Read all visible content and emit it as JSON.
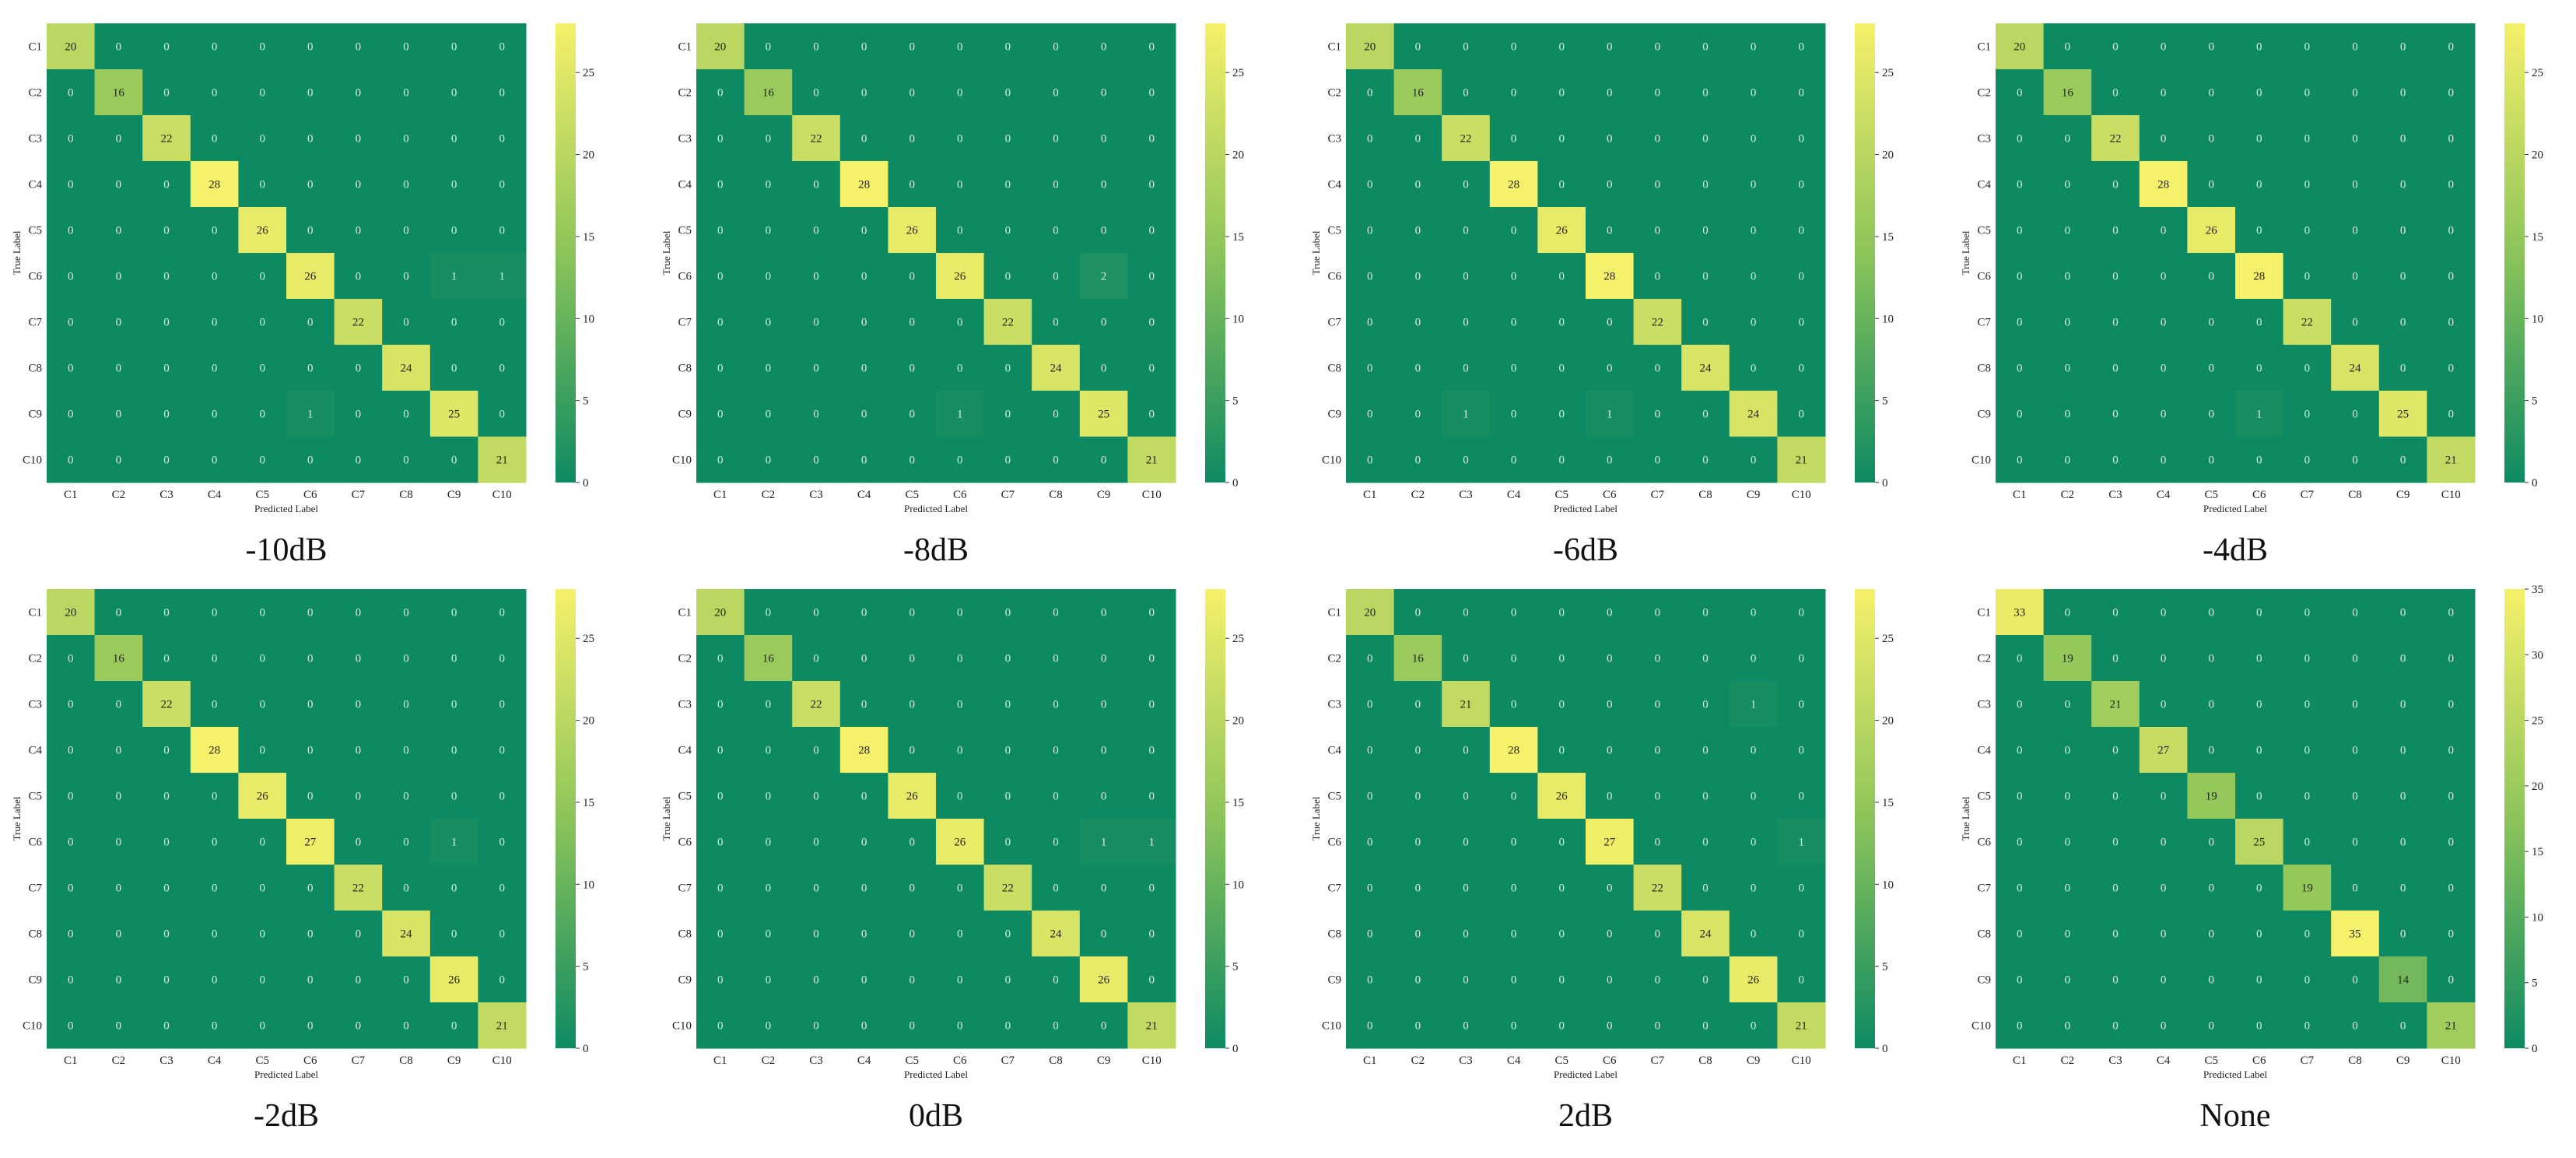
{
  "colors": {
    "low": "#0d8a62",
    "mid": "#8cc45a",
    "high": "#f6f16a",
    "text_dark": "#222222",
    "text_light": "#d8ece2",
    "cell_border": "#ffffff"
  },
  "chart_data": [
    {
      "type": "heatmap",
      "caption": "-10dB",
      "xlabel": "Predicted Label",
      "ylabel": "True Label",
      "x_categories": [
        "C1",
        "C2",
        "C3",
        "C4",
        "C5",
        "C6",
        "C7",
        "C8",
        "C9",
        "C10"
      ],
      "y_categories": [
        "C1",
        "C2",
        "C3",
        "C4",
        "C5",
        "C6",
        "C7",
        "C8",
        "C9",
        "C10"
      ],
      "colorbar": {
        "min": 0,
        "max": 28,
        "ticks": [
          0,
          5,
          10,
          15,
          20,
          25
        ]
      },
      "matrix": [
        [
          20,
          0,
          0,
          0,
          0,
          0,
          0,
          0,
          0,
          0
        ],
        [
          0,
          16,
          0,
          0,
          0,
          0,
          0,
          0,
          0,
          0
        ],
        [
          0,
          0,
          22,
          0,
          0,
          0,
          0,
          0,
          0,
          0
        ],
        [
          0,
          0,
          0,
          28,
          0,
          0,
          0,
          0,
          0,
          0
        ],
        [
          0,
          0,
          0,
          0,
          26,
          0,
          0,
          0,
          0,
          0
        ],
        [
          0,
          0,
          0,
          0,
          0,
          26,
          0,
          0,
          1,
          1
        ],
        [
          0,
          0,
          0,
          0,
          0,
          0,
          22,
          0,
          0,
          0
        ],
        [
          0,
          0,
          0,
          0,
          0,
          0,
          0,
          24,
          0,
          0
        ],
        [
          0,
          0,
          0,
          0,
          0,
          1,
          0,
          0,
          25,
          0
        ],
        [
          0,
          0,
          0,
          0,
          0,
          0,
          0,
          0,
          0,
          21
        ]
      ]
    },
    {
      "type": "heatmap",
      "caption": "-8dB",
      "xlabel": "Predicted Label",
      "ylabel": "True Label",
      "x_categories": [
        "C1",
        "C2",
        "C3",
        "C4",
        "C5",
        "C6",
        "C7",
        "C8",
        "C9",
        "C10"
      ],
      "y_categories": [
        "C1",
        "C2",
        "C3",
        "C4",
        "C5",
        "C6",
        "C7",
        "C8",
        "C9",
        "C10"
      ],
      "colorbar": {
        "min": 0,
        "max": 28,
        "ticks": [
          0,
          5,
          10,
          15,
          20,
          25
        ]
      },
      "matrix": [
        [
          20,
          0,
          0,
          0,
          0,
          0,
          0,
          0,
          0,
          0
        ],
        [
          0,
          16,
          0,
          0,
          0,
          0,
          0,
          0,
          0,
          0
        ],
        [
          0,
          0,
          22,
          0,
          0,
          0,
          0,
          0,
          0,
          0
        ],
        [
          0,
          0,
          0,
          28,
          0,
          0,
          0,
          0,
          0,
          0
        ],
        [
          0,
          0,
          0,
          0,
          26,
          0,
          0,
          0,
          0,
          0
        ],
        [
          0,
          0,
          0,
          0,
          0,
          26,
          0,
          0,
          2,
          0
        ],
        [
          0,
          0,
          0,
          0,
          0,
          0,
          22,
          0,
          0,
          0
        ],
        [
          0,
          0,
          0,
          0,
          0,
          0,
          0,
          24,
          0,
          0
        ],
        [
          0,
          0,
          0,
          0,
          0,
          1,
          0,
          0,
          25,
          0
        ],
        [
          0,
          0,
          0,
          0,
          0,
          0,
          0,
          0,
          0,
          21
        ]
      ]
    },
    {
      "type": "heatmap",
      "caption": "-6dB",
      "xlabel": "Predicted Label",
      "ylabel": "True Label",
      "x_categories": [
        "C1",
        "C2",
        "C3",
        "C4",
        "C5",
        "C6",
        "C7",
        "C8",
        "C9",
        "C10"
      ],
      "y_categories": [
        "C1",
        "C2",
        "C3",
        "C4",
        "C5",
        "C6",
        "C7",
        "C8",
        "C9",
        "C10"
      ],
      "colorbar": {
        "min": 0,
        "max": 28,
        "ticks": [
          0,
          5,
          10,
          15,
          20,
          25
        ]
      },
      "matrix": [
        [
          20,
          0,
          0,
          0,
          0,
          0,
          0,
          0,
          0,
          0
        ],
        [
          0,
          16,
          0,
          0,
          0,
          0,
          0,
          0,
          0,
          0
        ],
        [
          0,
          0,
          22,
          0,
          0,
          0,
          0,
          0,
          0,
          0
        ],
        [
          0,
          0,
          0,
          28,
          0,
          0,
          0,
          0,
          0,
          0
        ],
        [
          0,
          0,
          0,
          0,
          26,
          0,
          0,
          0,
          0,
          0
        ],
        [
          0,
          0,
          0,
          0,
          0,
          28,
          0,
          0,
          0,
          0
        ],
        [
          0,
          0,
          0,
          0,
          0,
          0,
          22,
          0,
          0,
          0
        ],
        [
          0,
          0,
          0,
          0,
          0,
          0,
          0,
          24,
          0,
          0
        ],
        [
          0,
          0,
          1,
          0,
          0,
          1,
          0,
          0,
          24,
          0
        ],
        [
          0,
          0,
          0,
          0,
          0,
          0,
          0,
          0,
          0,
          21
        ]
      ]
    },
    {
      "type": "heatmap",
      "caption": "-4dB",
      "xlabel": "Predicted Label",
      "ylabel": "True Label",
      "x_categories": [
        "C1",
        "C2",
        "C3",
        "C4",
        "C5",
        "C6",
        "C7",
        "C8",
        "C9",
        "C10"
      ],
      "y_categories": [
        "C1",
        "C2",
        "C3",
        "C4",
        "C5",
        "C6",
        "C7",
        "C8",
        "C9",
        "C10"
      ],
      "colorbar": {
        "min": 0,
        "max": 28,
        "ticks": [
          0,
          5,
          10,
          15,
          20,
          25
        ]
      },
      "matrix": [
        [
          20,
          0,
          0,
          0,
          0,
          0,
          0,
          0,
          0,
          0
        ],
        [
          0,
          16,
          0,
          0,
          0,
          0,
          0,
          0,
          0,
          0
        ],
        [
          0,
          0,
          22,
          0,
          0,
          0,
          0,
          0,
          0,
          0
        ],
        [
          0,
          0,
          0,
          28,
          0,
          0,
          0,
          0,
          0,
          0
        ],
        [
          0,
          0,
          0,
          0,
          26,
          0,
          0,
          0,
          0,
          0
        ],
        [
          0,
          0,
          0,
          0,
          0,
          28,
          0,
          0,
          0,
          0
        ],
        [
          0,
          0,
          0,
          0,
          0,
          0,
          22,
          0,
          0,
          0
        ],
        [
          0,
          0,
          0,
          0,
          0,
          0,
          0,
          24,
          0,
          0
        ],
        [
          0,
          0,
          0,
          0,
          0,
          1,
          0,
          0,
          25,
          0
        ],
        [
          0,
          0,
          0,
          0,
          0,
          0,
          0,
          0,
          0,
          21
        ]
      ]
    },
    {
      "type": "heatmap",
      "caption": "-2dB",
      "xlabel": "Predicted Label",
      "ylabel": "True Label",
      "x_categories": [
        "C1",
        "C2",
        "C3",
        "C4",
        "C5",
        "C6",
        "C7",
        "C8",
        "C9",
        "C10"
      ],
      "y_categories": [
        "C1",
        "C2",
        "C3",
        "C4",
        "C5",
        "C6",
        "C7",
        "C8",
        "C9",
        "C10"
      ],
      "colorbar": {
        "min": 0,
        "max": 28,
        "ticks": [
          0,
          5,
          10,
          15,
          20,
          25
        ]
      },
      "matrix": [
        [
          20,
          0,
          0,
          0,
          0,
          0,
          0,
          0,
          0,
          0
        ],
        [
          0,
          16,
          0,
          0,
          0,
          0,
          0,
          0,
          0,
          0
        ],
        [
          0,
          0,
          22,
          0,
          0,
          0,
          0,
          0,
          0,
          0
        ],
        [
          0,
          0,
          0,
          28,
          0,
          0,
          0,
          0,
          0,
          0
        ],
        [
          0,
          0,
          0,
          0,
          26,
          0,
          0,
          0,
          0,
          0
        ],
        [
          0,
          0,
          0,
          0,
          0,
          27,
          0,
          0,
          1,
          0
        ],
        [
          0,
          0,
          0,
          0,
          0,
          0,
          22,
          0,
          0,
          0
        ],
        [
          0,
          0,
          0,
          0,
          0,
          0,
          0,
          24,
          0,
          0
        ],
        [
          0,
          0,
          0,
          0,
          0,
          0,
          0,
          0,
          26,
          0
        ],
        [
          0,
          0,
          0,
          0,
          0,
          0,
          0,
          0,
          0,
          21
        ]
      ]
    },
    {
      "type": "heatmap",
      "caption": "0dB",
      "xlabel": "Predicted Label",
      "ylabel": "True Label",
      "x_categories": [
        "C1",
        "C2",
        "C3",
        "C4",
        "C5",
        "C6",
        "C7",
        "C8",
        "C9",
        "C10"
      ],
      "y_categories": [
        "C1",
        "C2",
        "C3",
        "C4",
        "C5",
        "C6",
        "C7",
        "C8",
        "C9",
        "C10"
      ],
      "colorbar": {
        "min": 0,
        "max": 28,
        "ticks": [
          0,
          5,
          10,
          15,
          20,
          25
        ]
      },
      "matrix": [
        [
          20,
          0,
          0,
          0,
          0,
          0,
          0,
          0,
          0,
          0
        ],
        [
          0,
          16,
          0,
          0,
          0,
          0,
          0,
          0,
          0,
          0
        ],
        [
          0,
          0,
          22,
          0,
          0,
          0,
          0,
          0,
          0,
          0
        ],
        [
          0,
          0,
          0,
          28,
          0,
          0,
          0,
          0,
          0,
          0
        ],
        [
          0,
          0,
          0,
          0,
          26,
          0,
          0,
          0,
          0,
          0
        ],
        [
          0,
          0,
          0,
          0,
          0,
          26,
          0,
          0,
          1,
          1
        ],
        [
          0,
          0,
          0,
          0,
          0,
          0,
          22,
          0,
          0,
          0
        ],
        [
          0,
          0,
          0,
          0,
          0,
          0,
          0,
          24,
          0,
          0
        ],
        [
          0,
          0,
          0,
          0,
          0,
          0,
          0,
          0,
          26,
          0
        ],
        [
          0,
          0,
          0,
          0,
          0,
          0,
          0,
          0,
          0,
          21
        ]
      ]
    },
    {
      "type": "heatmap",
      "caption": "2dB",
      "xlabel": "Predicted Label",
      "ylabel": "True Label",
      "x_categories": [
        "C1",
        "C2",
        "C3",
        "C4",
        "C5",
        "C6",
        "C7",
        "C8",
        "C9",
        "C10"
      ],
      "y_categories": [
        "C1",
        "C2",
        "C3",
        "C4",
        "C5",
        "C6",
        "C7",
        "C8",
        "C9",
        "C10"
      ],
      "colorbar": {
        "min": 0,
        "max": 28,
        "ticks": [
          0,
          5,
          10,
          15,
          20,
          25
        ]
      },
      "matrix": [
        [
          20,
          0,
          0,
          0,
          0,
          0,
          0,
          0,
          0,
          0
        ],
        [
          0,
          16,
          0,
          0,
          0,
          0,
          0,
          0,
          0,
          0
        ],
        [
          0,
          0,
          21,
          0,
          0,
          0,
          0,
          0,
          1,
          0
        ],
        [
          0,
          0,
          0,
          28,
          0,
          0,
          0,
          0,
          0,
          0
        ],
        [
          0,
          0,
          0,
          0,
          26,
          0,
          0,
          0,
          0,
          0
        ],
        [
          0,
          0,
          0,
          0,
          0,
          27,
          0,
          0,
          0,
          1
        ],
        [
          0,
          0,
          0,
          0,
          0,
          0,
          22,
          0,
          0,
          0
        ],
        [
          0,
          0,
          0,
          0,
          0,
          0,
          0,
          24,
          0,
          0
        ],
        [
          0,
          0,
          0,
          0,
          0,
          0,
          0,
          0,
          26,
          0
        ],
        [
          0,
          0,
          0,
          0,
          0,
          0,
          0,
          0,
          0,
          21
        ]
      ]
    },
    {
      "type": "heatmap",
      "caption": "None",
      "xlabel": "Predicted Label",
      "ylabel": "True Label",
      "x_categories": [
        "C1",
        "C2",
        "C3",
        "C4",
        "C5",
        "C6",
        "C7",
        "C8",
        "C9",
        "C10"
      ],
      "y_categories": [
        "C1",
        "C2",
        "C3",
        "C4",
        "C5",
        "C6",
        "C7",
        "C8",
        "C9",
        "C10"
      ],
      "colorbar": {
        "min": 0,
        "max": 35,
        "ticks": [
          0,
          5,
          10,
          15,
          20,
          25,
          30,
          35
        ]
      },
      "matrix": [
        [
          33,
          0,
          0,
          0,
          0,
          0,
          0,
          0,
          0,
          0
        ],
        [
          0,
          19,
          0,
          0,
          0,
          0,
          0,
          0,
          0,
          0
        ],
        [
          0,
          0,
          21,
          0,
          0,
          0,
          0,
          0,
          0,
          0
        ],
        [
          0,
          0,
          0,
          27,
          0,
          0,
          0,
          0,
          0,
          0
        ],
        [
          0,
          0,
          0,
          0,
          19,
          0,
          0,
          0,
          0,
          0
        ],
        [
          0,
          0,
          0,
          0,
          0,
          25,
          0,
          0,
          0,
          0
        ],
        [
          0,
          0,
          0,
          0,
          0,
          0,
          19,
          0,
          0,
          0
        ],
        [
          0,
          0,
          0,
          0,
          0,
          0,
          0,
          35,
          0,
          0
        ],
        [
          0,
          0,
          0,
          0,
          0,
          0,
          0,
          0,
          14,
          0
        ],
        [
          0,
          0,
          0,
          0,
          0,
          0,
          0,
          0,
          0,
          21
        ]
      ]
    }
  ]
}
